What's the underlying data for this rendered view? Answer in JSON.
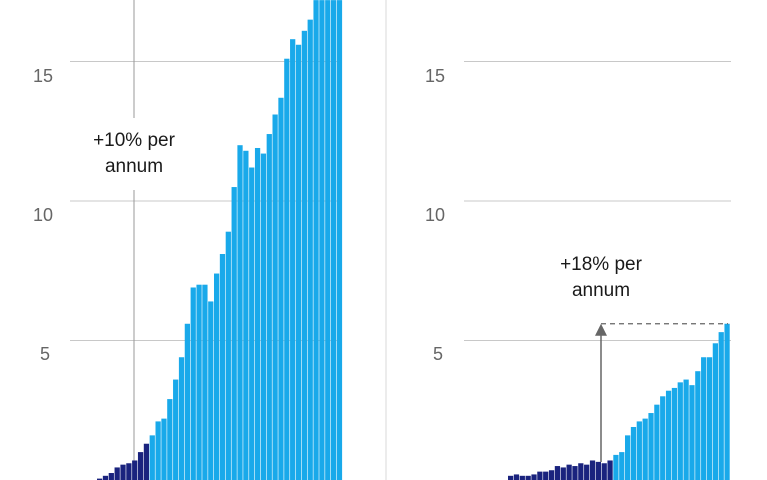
{
  "colors": {
    "dark_bar": "#1a237e",
    "light_bar": "#19a9ea",
    "grid": "#c8c8c8",
    "tick_text": "#666666",
    "annotation_text": "#1a1a1a",
    "arrow": "#666666"
  },
  "chart_data": [
    {
      "type": "bar",
      "y_tick_labels": [
        "5",
        "10",
        "15"
      ],
      "grid": true,
      "ylim": [
        0,
        17.2
      ],
      "annotation_line1": "+10% per",
      "annotation_line2": "annum",
      "values": [
        0.05,
        0.15,
        0.25,
        0.45,
        0.55,
        0.6,
        0.7,
        1.0,
        1.3,
        1.6,
        2.1,
        2.2,
        2.9,
        3.6,
        4.4,
        5.6,
        6.9,
        7.0,
        7.0,
        6.4,
        7.4,
        8.1,
        8.9,
        10.5,
        12.0,
        11.8,
        11.2,
        11.9,
        11.7,
        12.4,
        13.1,
        13.7,
        15.1,
        15.8,
        15.6,
        16.1,
        16.5,
        17.2,
        17.2,
        17.2,
        17.2,
        17.2
      ],
      "dark_count": 9,
      "note": "last bars extend above the visible area"
    },
    {
      "type": "bar",
      "y_tick_labels": [
        "5",
        "10",
        "15"
      ],
      "grid": true,
      "ylim": [
        0,
        17.2
      ],
      "annotation_line1": "+18% per",
      "annotation_line2": "annum",
      "values": [
        0.15,
        0.2,
        0.15,
        0.15,
        0.2,
        0.3,
        0.3,
        0.35,
        0.5,
        0.45,
        0.55,
        0.5,
        0.6,
        0.55,
        0.7,
        0.65,
        0.6,
        0.7,
        0.9,
        1.0,
        1.6,
        1.9,
        2.1,
        2.2,
        2.4,
        2.7,
        3.0,
        3.2,
        3.3,
        3.5,
        3.6,
        3.4,
        3.9,
        4.4,
        4.4,
        4.9,
        5.3,
        5.6
      ],
      "dark_count": 18,
      "arrow_value": 5.6
    }
  ]
}
